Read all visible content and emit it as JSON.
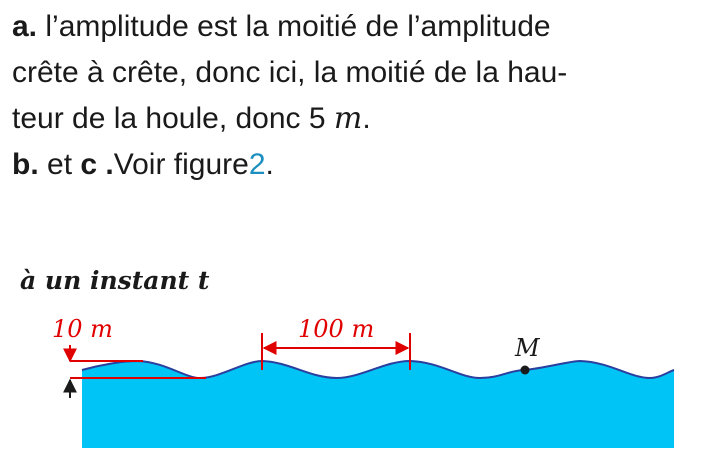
{
  "text": {
    "a_label": "a.",
    "line1_rest": " l’amplitude est la moitié de l’amplitude",
    "line2": "crête à crête, donc ici, la moitié de la hau-",
    "line3_pre": "teur de la houle, donc 5 ",
    "line3_unit": "m",
    "line3_end": ".",
    "b_label": "b.",
    "b_and": " et ",
    "c_label": "c .",
    "b_rest": "Voir figure",
    "figure_ref": "2",
    "b_end": "."
  },
  "figure": {
    "caption": "à un instant t",
    "height_label": "10 m",
    "wavelength_label": "100 m",
    "point_label": "M",
    "colors": {
      "water": "#00c4f5",
      "wave_line": "#2a3f9e",
      "annotation": "#e00000",
      "figure_ref": "#1b8fc0"
    }
  }
}
